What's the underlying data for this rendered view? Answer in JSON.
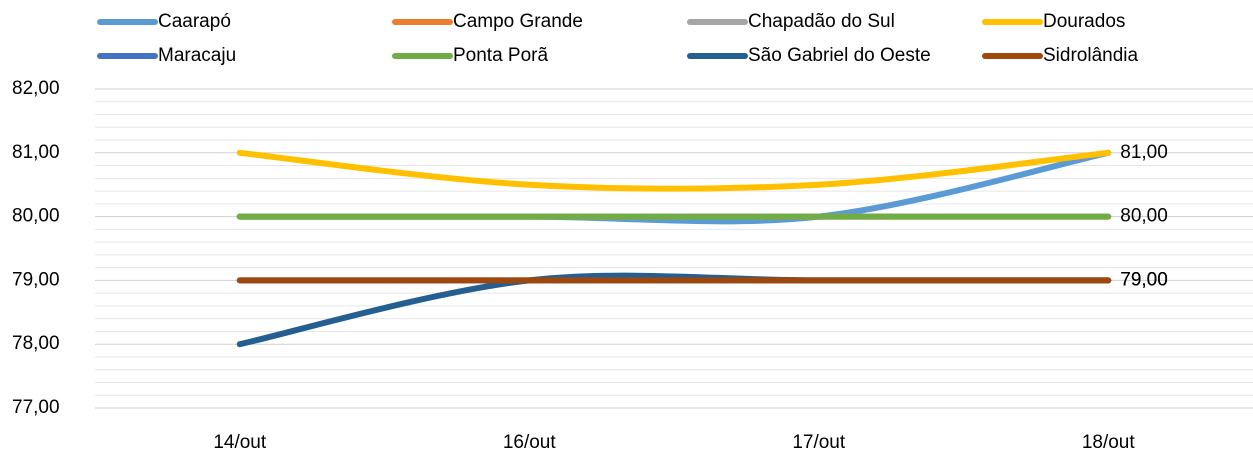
{
  "chart_data": {
    "type": "line",
    "categories": [
      "14/out",
      "16/out",
      "17/out",
      "18/out"
    ],
    "series": [
      {
        "name": "Caarapó",
        "color": "#5b9bd5",
        "values": [
          80,
          80,
          80,
          81
        ]
      },
      {
        "name": "Campo Grande",
        "color": "#ed7d31",
        "values": [
          80,
          80,
          80,
          80
        ]
      },
      {
        "name": "Chapadão do Sul",
        "color": "#a5a5a5",
        "values": [
          80,
          80,
          80,
          80
        ]
      },
      {
        "name": "Dourados",
        "color": "#ffc000",
        "values": [
          81,
          80.5,
          80.5,
          81
        ],
        "value_labels": [
          null,
          null,
          null,
          "81,00"
        ]
      },
      {
        "name": "Maracaju",
        "color": "#4472c4",
        "values": [
          79,
          79,
          79,
          79
        ]
      },
      {
        "name": "Ponta Porã",
        "color": "#70ad47",
        "values": [
          80,
          80,
          80,
          80
        ],
        "value_labels": [
          null,
          null,
          null,
          "80,00"
        ]
      },
      {
        "name": "São Gabriel do Oeste",
        "color": "#255e91",
        "values": [
          78,
          79,
          79,
          79
        ],
        "value_labels": [
          null,
          null,
          null,
          "79,00"
        ]
      },
      {
        "name": "Sidrolândia",
        "color": "#9e480e",
        "values": [
          79,
          79,
          79,
          79
        ],
        "value_labels": [
          null,
          null,
          null,
          "79,00"
        ]
      }
    ],
    "ylim": [
      77,
      82
    ],
    "yticks": [
      {
        "value": 77,
        "label": "77,00"
      },
      {
        "value": 78,
        "label": "78,00"
      },
      {
        "value": 79,
        "label": "79,00"
      },
      {
        "value": 80,
        "label": "80,00"
      },
      {
        "value": 81,
        "label": "81,00"
      },
      {
        "value": 82,
        "label": "82,00"
      }
    ],
    "grid": true,
    "legend": "top"
  }
}
